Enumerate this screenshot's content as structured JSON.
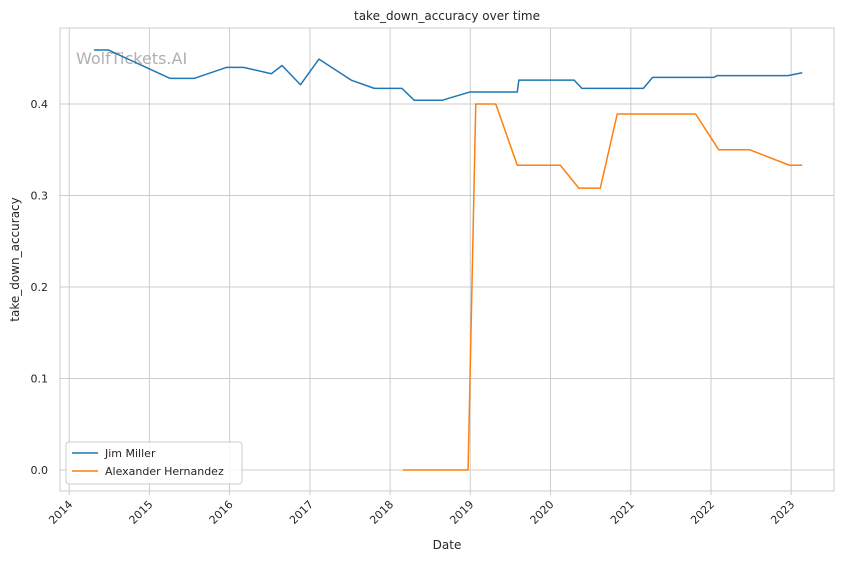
{
  "chart_data": {
    "type": "line",
    "title": "take_down_accuracy over time",
    "xlabel": "Date",
    "ylabel": "take_down_accuracy",
    "watermark": "WolfTickets.AI",
    "xlim": [
      "2013-11-20",
      "2023-07-15"
    ],
    "ylim": [
      -0.023,
      0.483
    ],
    "x_ticks": [
      "2014-01-01",
      "2015-01-01",
      "2016-01-01",
      "2017-01-01",
      "2018-01-01",
      "2019-01-01",
      "2020-01-01",
      "2021-01-01",
      "2022-01-01",
      "2023-01-01"
    ],
    "x_tick_labels": [
      "2014",
      "2015",
      "2016",
      "2017",
      "2018",
      "2019",
      "2020",
      "2021",
      "2022",
      "2023"
    ],
    "y_ticks": [
      0.0,
      0.1,
      0.2,
      0.3,
      0.4
    ],
    "y_tick_labels": [
      "0.0",
      "0.1",
      "0.2",
      "0.3",
      "0.4"
    ],
    "grid": true,
    "legend_position": "bottom-left",
    "series": [
      {
        "name": "Jim Miller",
        "color": "#1f77b4",
        "points": [
          [
            "2014-04-26",
            0.459
          ],
          [
            "2014-06-28",
            0.459
          ],
          [
            "2015-04-04",
            0.428
          ],
          [
            "2015-07-25",
            0.428
          ],
          [
            "2015-12-19",
            0.44
          ],
          [
            "2016-03-05",
            0.44
          ],
          [
            "2016-07-09",
            0.433
          ],
          [
            "2016-08-27",
            0.442
          ],
          [
            "2016-11-19",
            0.421
          ],
          [
            "2017-02-11",
            0.449
          ],
          [
            "2017-07-08",
            0.426
          ],
          [
            "2017-10-21",
            0.417
          ],
          [
            "2018-02-24",
            0.417
          ],
          [
            "2018-04-21",
            0.404
          ],
          [
            "2018-08-25",
            0.404
          ],
          [
            "2018-12-29",
            0.413
          ],
          [
            "2019-08-03",
            0.413
          ],
          [
            "2019-08-10",
            0.426
          ],
          [
            "2020-04-18",
            0.426
          ],
          [
            "2020-05-23",
            0.417
          ],
          [
            "2021-02-27",
            0.417
          ],
          [
            "2021-04-10",
            0.429
          ],
          [
            "2022-01-15",
            0.429
          ],
          [
            "2022-01-29",
            0.431
          ],
          [
            "2022-12-17",
            0.431
          ],
          [
            "2023-02-18",
            0.434
          ]
        ]
      },
      {
        "name": "Alexander Hernandez",
        "color": "#ff7f0e",
        "points": [
          [
            "2018-03-03",
            0.0
          ],
          [
            "2018-12-22",
            0.0
          ],
          [
            "2019-01-26",
            0.4
          ],
          [
            "2019-04-27",
            0.4
          ],
          [
            "2019-08-03",
            0.333
          ],
          [
            "2020-02-15",
            0.333
          ],
          [
            "2020-05-09",
            0.308
          ],
          [
            "2020-08-15",
            0.308
          ],
          [
            "2020-10-31",
            0.389
          ],
          [
            "2021-10-23",
            0.389
          ],
          [
            "2022-02-05",
            0.35
          ],
          [
            "2022-06-25",
            0.35
          ],
          [
            "2022-12-24",
            0.333
          ],
          [
            "2023-02-18",
            0.333
          ]
        ]
      }
    ]
  }
}
